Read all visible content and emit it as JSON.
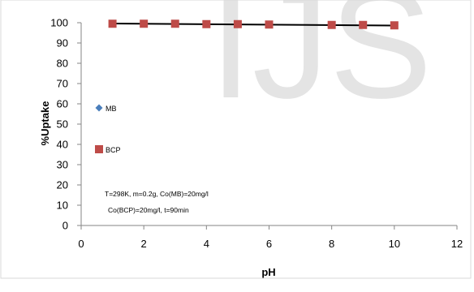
{
  "watermark": "IJS",
  "chart_data": {
    "type": "scatter",
    "title": "",
    "xlabel": "pH",
    "ylabel": "%Uptake",
    "xlim": [
      0,
      12
    ],
    "ylim": [
      0,
      100
    ],
    "x_ticks": [
      0,
      2,
      4,
      6,
      8,
      10,
      12
    ],
    "y_ticks": [
      0,
      10,
      20,
      30,
      40,
      50,
      60,
      70,
      80,
      90,
      100
    ],
    "grid": false,
    "legend_position": "left",
    "series": [
      {
        "name": "MB",
        "marker": "diamond",
        "color": "#4a7ebb",
        "x": [],
        "y": []
      },
      {
        "name": "BCP",
        "marker": "square",
        "color": "#be4b48",
        "x": [
          1,
          2,
          3,
          4,
          5,
          6,
          8,
          9,
          10
        ],
        "y": [
          99.5,
          99.5,
          99.5,
          99.3,
          99.3,
          99.1,
          98.9,
          98.9,
          98.7
        ]
      }
    ],
    "trendline": {
      "color": "#000000",
      "x": [
        1,
        10
      ],
      "y": [
        99.6,
        98.6
      ]
    },
    "annotations": [
      "T=298K, m=0.2g, Co(MB)=20mg/l",
      "Co(BCP)=20mg/l, t=90min"
    ]
  }
}
